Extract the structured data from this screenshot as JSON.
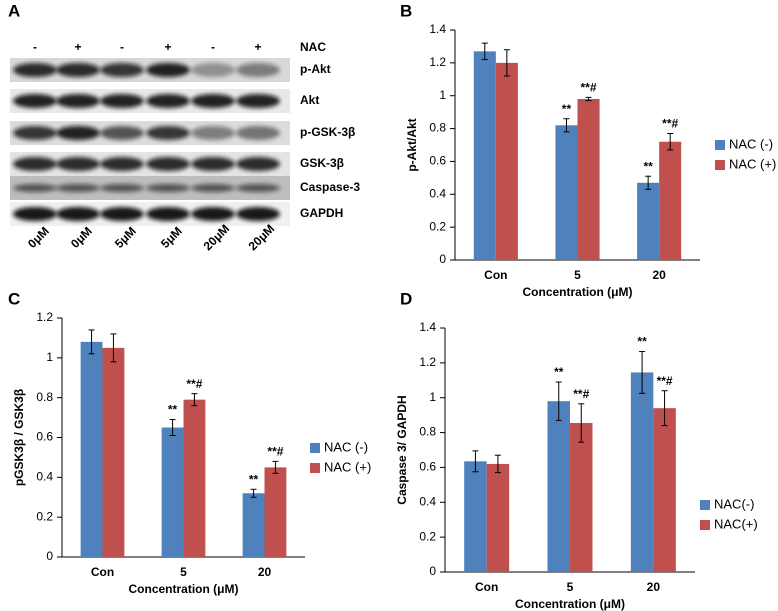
{
  "blot": {
    "label": "A",
    "nac_label": "NAC",
    "nac": [
      "-",
      "+",
      "-",
      "+",
      "-",
      "+"
    ],
    "rows": [
      "p-Akt",
      "Akt",
      "p-GSK-3β",
      "GSK-3β",
      "Caspase-3",
      "GAPDH"
    ],
    "lanes": [
      "0μM",
      "0μM",
      "5μM",
      "5μM",
      "20μM",
      "20μM"
    ]
  },
  "chart_data": [
    {
      "type": "bar",
      "label": "B",
      "ylabel": "p-Akt/Akt",
      "xlabel": "Concentration (μM)",
      "categories": [
        "Con",
        "5",
        "20"
      ],
      "ylim": [
        0,
        1.4
      ],
      "yticks": [
        0,
        0.2,
        0.4,
        0.6,
        0.8,
        1,
        1.2,
        1.4
      ],
      "legend": "right",
      "series": [
        {
          "name": "NAC (-)",
          "color": "#4f81bd",
          "values": [
            1.27,
            0.82,
            0.47
          ],
          "errors": [
            0.05,
            0.04,
            0.04
          ],
          "annotations": [
            null,
            "**",
            "**"
          ]
        },
        {
          "name": "NAC (+)",
          "color": "#c0504d",
          "values": [
            1.2,
            0.98,
            0.72
          ],
          "errors": [
            0.08,
            0.01,
            0.05
          ],
          "annotations": [
            null,
            "**#",
            "**#"
          ]
        }
      ]
    },
    {
      "type": "bar",
      "label": "C",
      "ylabel": "pGSK3β / GSK3β",
      "xlabel": "Concentration (μM)",
      "categories": [
        "Con",
        "5",
        "20"
      ],
      "ylim": [
        0,
        1.2
      ],
      "yticks": [
        0,
        0.2,
        0.4,
        0.6,
        0.8,
        1,
        1.2
      ],
      "legend": "right",
      "series": [
        {
          "name": "NAC (-)",
          "color": "#4f81bd",
          "values": [
            1.08,
            0.65,
            0.32
          ],
          "errors": [
            0.06,
            0.04,
            0.02
          ],
          "annotations": [
            null,
            "**",
            "**"
          ]
        },
        {
          "name": "NAC (+)",
          "color": "#c0504d",
          "values": [
            1.05,
            0.79,
            0.45
          ],
          "errors": [
            0.07,
            0.03,
            0.03
          ],
          "annotations": [
            null,
            "**#",
            "**#"
          ]
        }
      ]
    },
    {
      "type": "bar",
      "label": "D",
      "ylabel": "Caspase 3/ GAPDH",
      "xlabel": "Concentration (μM)",
      "categories": [
        "Con",
        "5",
        "20"
      ],
      "ylim": [
        0,
        1.4
      ],
      "yticks": [
        0,
        0.2,
        0.4,
        0.6,
        0.8,
        1,
        1.2,
        1.4
      ],
      "legend": "right",
      "series": [
        {
          "name": "NAC(-)",
          "color": "#4f81bd",
          "values": [
            0.635,
            0.98,
            1.145
          ],
          "errors": [
            0.06,
            0.11,
            0.12
          ],
          "annotations": [
            null,
            "**",
            "**"
          ]
        },
        {
          "name": "NAC(+)",
          "color": "#c0504d",
          "values": [
            0.62,
            0.855,
            0.94
          ],
          "errors": [
            0.05,
            0.11,
            0.1
          ],
          "annotations": [
            null,
            "**#",
            "**#"
          ]
        }
      ]
    }
  ]
}
